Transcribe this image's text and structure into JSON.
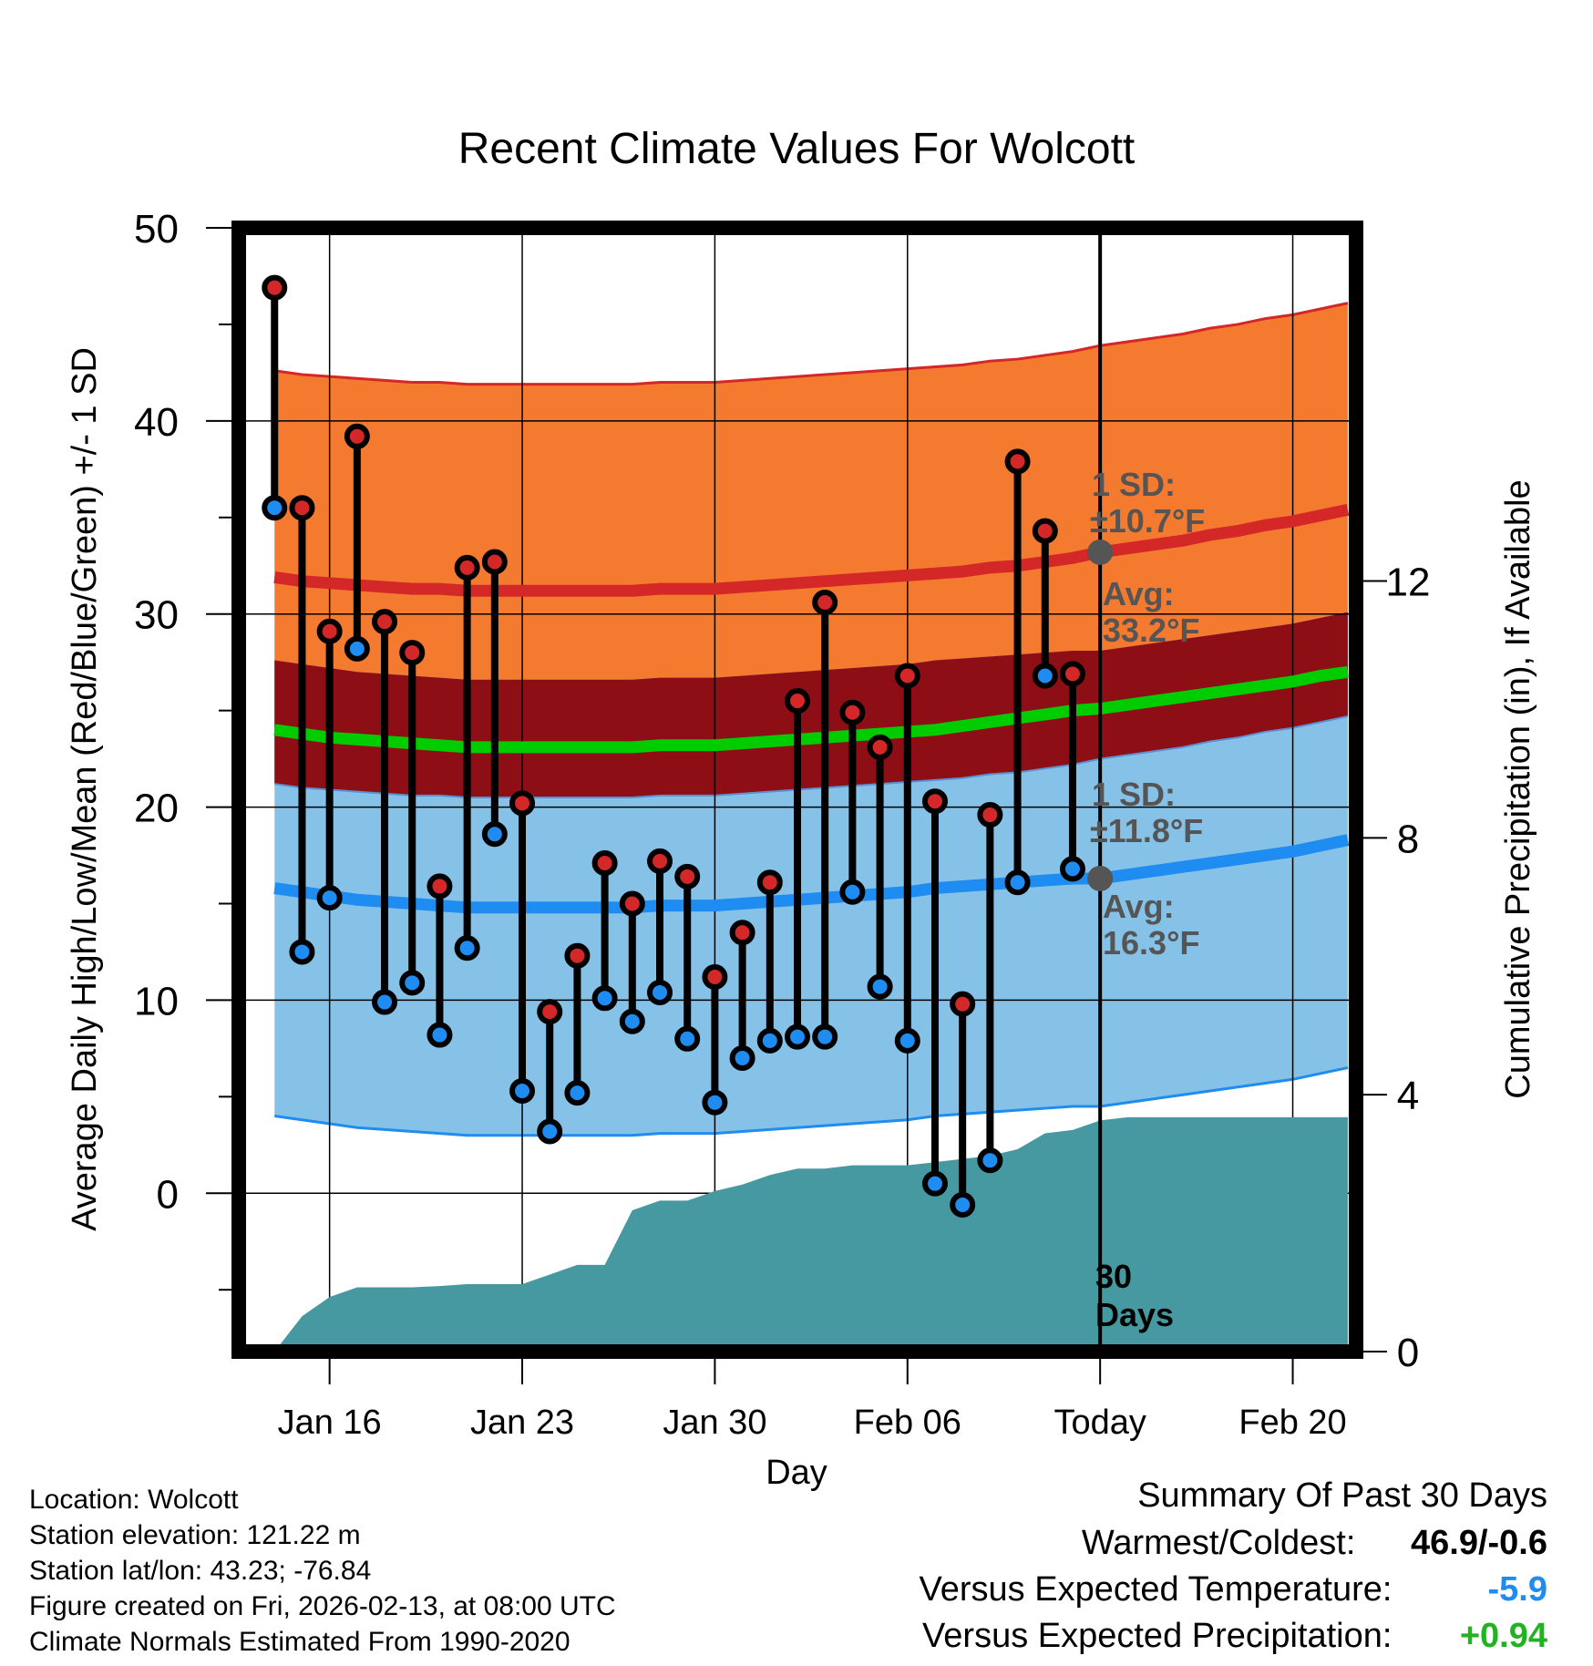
{
  "chart_data": {
    "type": "line",
    "title": "Recent Climate Values For Wolcott",
    "xlabel": "Day",
    "ylabel": "Average Daily High/Low/Mean (Red/Blue/Green) +/- 1 SD",
    "y2label": "Cumulative Precipitation (in), If Available",
    "ylim": [
      -8.2,
      50
    ],
    "y2lim": [
      0,
      17.5
    ],
    "xlim": [
      -1.3,
      39.3
    ],
    "today_index": 30,
    "y_ticks": [
      "0",
      "10",
      "20",
      "30",
      "40",
      "50"
    ],
    "y_tick_values": [
      0,
      10,
      20,
      30,
      40,
      50
    ],
    "y2_ticks": [
      "0",
      "4",
      "8",
      "12"
    ],
    "y2_tick_values": [
      0,
      4,
      8,
      12
    ],
    "x_ticks": [
      {
        "label": "Jan 16",
        "index": 2
      },
      {
        "label": "Jan 23",
        "index": 9
      },
      {
        "label": "Jan 30",
        "index": 16
      },
      {
        "label": "Feb 06",
        "index": 23
      },
      {
        "label": "Today",
        "index": 30
      },
      {
        "label": "Feb 20",
        "index": 37
      }
    ],
    "normal_high": [
      31.9,
      31.7,
      31.6,
      31.5,
      31.4,
      31.3,
      31.3,
      31.2,
      31.2,
      31.2,
      31.2,
      31.2,
      31.2,
      31.2,
      31.3,
      31.3,
      31.3,
      31.4,
      31.5,
      31.6,
      31.7,
      31.8,
      31.9,
      32.0,
      32.1,
      32.2,
      32.4,
      32.5,
      32.7,
      32.9,
      33.2,
      33.4,
      33.6,
      33.8,
      34.1,
      34.3,
      34.6,
      34.8,
      35.1,
      35.4
    ],
    "normal_low": [
      15.8,
      15.6,
      15.4,
      15.2,
      15.1,
      15.0,
      14.9,
      14.8,
      14.8,
      14.8,
      14.8,
      14.8,
      14.8,
      14.8,
      14.9,
      14.9,
      14.9,
      15.0,
      15.1,
      15.2,
      15.3,
      15.4,
      15.5,
      15.6,
      15.8,
      15.9,
      16.0,
      16.1,
      16.2,
      16.3,
      16.3,
      16.5,
      16.7,
      16.9,
      17.1,
      17.3,
      17.5,
      17.7,
      18.0,
      18.3
    ],
    "normal_mean": [
      24.0,
      23.8,
      23.6,
      23.5,
      23.4,
      23.3,
      23.2,
      23.1,
      23.1,
      23.1,
      23.1,
      23.1,
      23.1,
      23.1,
      23.2,
      23.2,
      23.2,
      23.3,
      23.4,
      23.5,
      23.6,
      23.7,
      23.8,
      23.9,
      24.0,
      24.2,
      24.4,
      24.6,
      24.8,
      25.0,
      25.1,
      25.3,
      25.5,
      25.7,
      25.9,
      26.1,
      26.3,
      26.5,
      26.8,
      27.0
    ],
    "high_sd": 10.7,
    "low_sd": 11.8,
    "series": [
      {
        "name": "High",
        "values": [
          46.9,
          35.5,
          29.1,
          39.2,
          29.6,
          28.0,
          15.9,
          32.4,
          32.7,
          20.2,
          9.4,
          12.3,
          17.1,
          15.0,
          17.2,
          16.4,
          11.2,
          13.5,
          16.1,
          25.5,
          30.6,
          24.9,
          23.1,
          26.8,
          20.3,
          9.8,
          19.6,
          37.9,
          34.3,
          26.9
        ]
      },
      {
        "name": "Low",
        "values": [
          35.5,
          12.5,
          15.3,
          28.2,
          9.9,
          10.9,
          8.2,
          12.7,
          18.6,
          5.3,
          3.2,
          5.2,
          10.1,
          8.9,
          10.4,
          8.0,
          4.7,
          7.0,
          7.9,
          8.1,
          8.1,
          15.6,
          10.7,
          7.9,
          0.5,
          -0.6,
          1.7,
          16.1,
          26.8,
          16.8
        ]
      },
      {
        "name": "Cumulative Precipitation",
        "values": [
          0.0,
          0.55,
          0.85,
          1.0,
          1.0,
          1.0,
          1.02,
          1.05,
          1.05,
          1.05,
          1.2,
          1.35,
          1.35,
          2.2,
          2.35,
          2.35,
          2.5,
          2.6,
          2.75,
          2.85,
          2.85,
          2.9,
          2.9,
          2.9,
          2.95,
          3.0,
          3.05,
          3.15,
          3.4,
          3.45,
          3.6,
          3.65,
          3.65,
          3.65,
          3.65,
          3.65,
          3.65,
          3.65,
          3.65,
          3.65
        ]
      }
    ],
    "annotations": {
      "high_sd_label": "1 SD:",
      "high_sd_value": "±10.7°F",
      "high_avg_label": "Avg:",
      "high_avg_value": "33.2°F",
      "low_sd_label": "1 SD:",
      "low_sd_value": "±11.8°F",
      "low_avg_label": "Avg:",
      "low_avg_value": "16.3°F",
      "days_num": "30",
      "days_label": "Days",
      "high_avg": 33.2,
      "low_avg": 16.3
    },
    "colors": {
      "high_band": "#f47a2f",
      "mid_band": "#8e0e16",
      "low_band": "#86c2e8",
      "high_line": "#d42727",
      "low_line": "#1e8cf0",
      "mean_line": "#00cc00",
      "precip": "#4699a1",
      "high_dot": "#d42727",
      "low_dot": "#1e8cf0",
      "annot_text": "#555555"
    }
  },
  "footer": {
    "location": "Location: Wolcott",
    "elevation": "Station elevation: 121.22 m",
    "latlon": "Station lat/lon: 43.23; -76.84",
    "created": "Figure created on Fri, 2026-02-13, at 08:00 UTC",
    "normals": "Climate Normals Estimated From 1990-2020"
  },
  "summary": {
    "title": "Summary Of Past 30 Days",
    "warm_cold_label": "Warmest/Coldest:",
    "warm_cold_value": "46.9/-0.6",
    "temp_label": "Versus Expected Temperature:",
    "temp_value": "-5.9",
    "temp_color": "#1e8cf0",
    "precip_label": "Versus Expected Precipitation:",
    "precip_value": "+0.94",
    "precip_color": "#22b322"
  }
}
